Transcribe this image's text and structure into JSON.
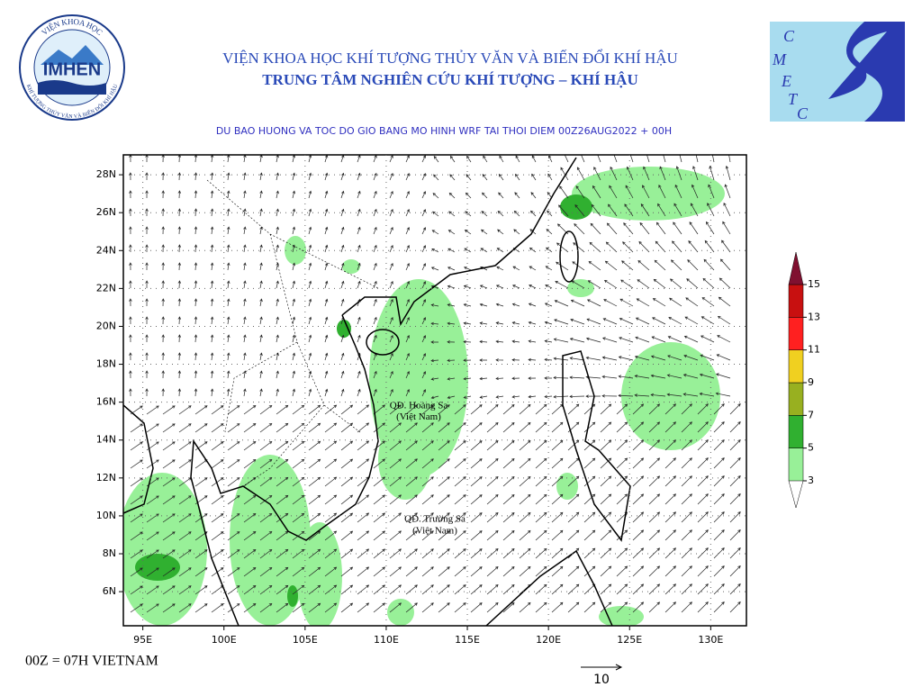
{
  "header": {
    "logo_text": "IMHEN",
    "logo_ring_top": "VIỆN KHOA HỌC",
    "logo_ring_bottom": "KHÍ TƯỢNG THỦY VĂN VÀ BIẾN ĐỔI KHÍ HẬU",
    "institute": "VIỆN KHOA HỌC KHÍ TƯỢNG THỦY VĂN VÀ BIẾN ĐỔI KHÍ HẬU",
    "center": "TRUNG TÂM NGHIÊN CỨU KHÍ TƯỢNG – KHÍ HẬU",
    "logo2_letters": [
      "C",
      "M",
      "E",
      "T",
      "C"
    ]
  },
  "map": {
    "title": "DU BAO HUONG VA TOC DO GIO BANG MO HINH WRF TAI THOI DIEM  00Z26AUG2022 + 00H",
    "xlim": [
      93.8,
      132.2
    ],
    "ylim": [
      4.2,
      29.05
    ],
    "xticks": [
      {
        "value": 95,
        "label": "95E"
      },
      {
        "value": 100,
        "label": "100E"
      },
      {
        "value": 105,
        "label": "105E"
      },
      {
        "value": 110,
        "label": "110E"
      },
      {
        "value": 115,
        "label": "115E"
      },
      {
        "value": 120,
        "label": "120E"
      },
      {
        "value": 125,
        "label": "125E"
      },
      {
        "value": 130,
        "label": "130E"
      }
    ],
    "yticks": [
      {
        "value": 6,
        "label": "6N"
      },
      {
        "value": 8,
        "label": "8N"
      },
      {
        "value": 10,
        "label": "10N"
      },
      {
        "value": 12,
        "label": "12N"
      },
      {
        "value": 14,
        "label": "14N"
      },
      {
        "value": 16,
        "label": "16N"
      },
      {
        "value": 18,
        "label": "18N"
      },
      {
        "value": 20,
        "label": "20N"
      },
      {
        "value": 22,
        "label": "22N"
      },
      {
        "value": 24,
        "label": "24N"
      },
      {
        "value": 26,
        "label": "26N"
      },
      {
        "value": 28,
        "label": "28N"
      }
    ],
    "labels": [
      {
        "text": "QĐ. Hoàng Sa",
        "lon": 112,
        "lat": 15.8
      },
      {
        "text": "(Việt Nam)",
        "lon": 112,
        "lat": 15.2
      },
      {
        "text": "QĐ. Trường Sa",
        "lon": 113,
        "lat": 9.8
      },
      {
        "text": "(Việt Nam)",
        "lon": 113,
        "lat": 9.2
      }
    ]
  },
  "colorbar": {
    "ticks": [
      3,
      5,
      7,
      9,
      11,
      13,
      15
    ],
    "colors": [
      "#98f098",
      "#30b030",
      "#98b020",
      "#f0d020",
      "#ff2020",
      "#c81010",
      "#801030"
    ]
  },
  "footer": {
    "note": "00Z = 07H VIETNAM",
    "ref_vector": 10
  }
}
